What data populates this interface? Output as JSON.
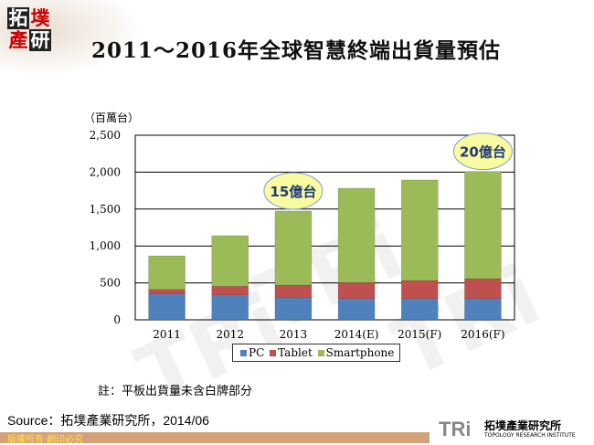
{
  "header": {
    "logo_text": "拓墣產研",
    "title": "2011～2016年全球智慧終端出貨量預估"
  },
  "chart_data": {
    "type": "bar",
    "stacked": true,
    "categories": [
      "2011",
      "2012",
      "2013",
      "2014(E)",
      "2015(F)",
      "2016(F)"
    ],
    "series": [
      {
        "name": "PC",
        "color": "#4f81bd",
        "values": [
          350,
          338,
          300,
          288,
          288,
          288
        ]
      },
      {
        "name": "Tablet",
        "color": "#c0504d",
        "values": [
          62,
          116,
          170,
          216,
          244,
          269
        ]
      },
      {
        "name": "Smartphone",
        "color": "#9bbb59",
        "values": [
          454,
          686,
          1003,
          1278,
          1362,
          1452
        ]
      }
    ],
    "ylabel": "（百萬台）",
    "ylim": [
      0,
      2500
    ],
    "yticks": [
      "0",
      "500",
      "1,000",
      "1,500",
      "2,000",
      "2,500"
    ],
    "grid": true,
    "legend": "bottom",
    "annotations": [
      {
        "text": "15億台",
        "category": "2013"
      },
      {
        "text": "20億台",
        "category": "2016(F)"
      }
    ]
  },
  "note": "註：平板出貨量未含白牌部分",
  "source": "Source：拓墣產業研究所，2014/06",
  "footer": {
    "copyright": "版權所有‧翻印必究",
    "brand": "TRi",
    "brand_cn": "拓墣產業研究所",
    "brand_en": "TOPOLOGY RESEARCH INSTITUTE"
  }
}
